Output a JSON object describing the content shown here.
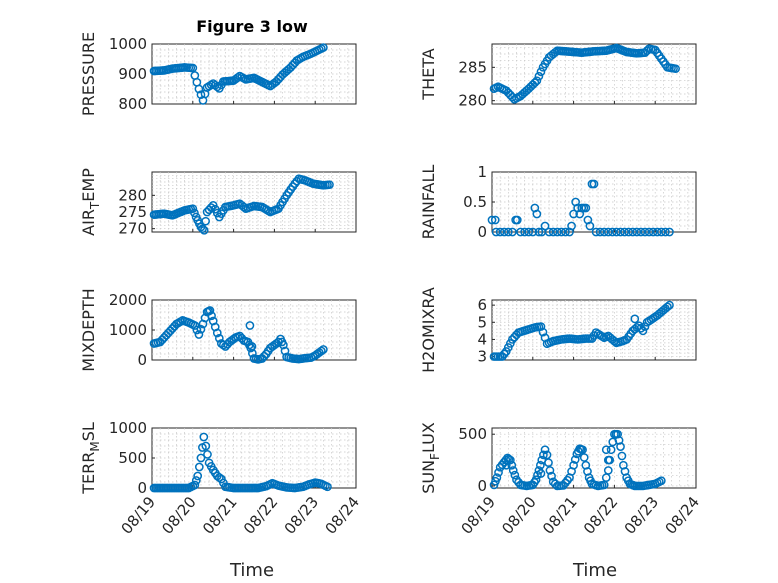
{
  "figure": {
    "title": "Figure 3 low",
    "xlabel": "Time",
    "marker_color": "#0072BD"
  },
  "chart_data": [
    {
      "type": "scatter",
      "id": "pressure",
      "title": "Figure 3 low",
      "ylabel": "PRESSURE",
      "xlim": [
        0,
        5
      ],
      "ylim": [
        800,
        1000
      ],
      "yticks": [
        800,
        900,
        1000
      ],
      "xticks": [
        0,
        1,
        2,
        3,
        4,
        5
      ],
      "xtick_labels": [
        "08/19",
        "08/20",
        "08/21",
        "08/22",
        "08/23",
        "08/24"
      ],
      "show_xtick_labels": false,
      "curve": [
        [
          0.05,
          910
        ],
        [
          0.3,
          912
        ],
        [
          0.5,
          918
        ],
        [
          0.8,
          922
        ],
        [
          1.0,
          920
        ],
        [
          1.05,
          895
        ],
        [
          1.15,
          850
        ],
        [
          1.25,
          812
        ],
        [
          1.35,
          855
        ],
        [
          1.5,
          868
        ],
        [
          1.65,
          852
        ],
        [
          1.75,
          875
        ],
        [
          2.0,
          878
        ],
        [
          2.15,
          893
        ],
        [
          2.3,
          882
        ],
        [
          2.5,
          887
        ],
        [
          2.75,
          870
        ],
        [
          2.9,
          860
        ],
        [
          3.05,
          875
        ],
        [
          3.2,
          898
        ],
        [
          3.4,
          922
        ],
        [
          3.55,
          945
        ],
        [
          3.7,
          957
        ],
        [
          3.9,
          968
        ],
        [
          4.05,
          978
        ],
        [
          4.2,
          988
        ]
      ]
    },
    {
      "type": "scatter",
      "id": "theta",
      "ylabel": "THETA",
      "xlim": [
        0,
        5
      ],
      "ylim": [
        279.5,
        288.5
      ],
      "yticks": [
        280,
        285
      ],
      "xticks": [
        0,
        1,
        2,
        3,
        4,
        5
      ],
      "xtick_labels": [
        "08/19",
        "08/20",
        "08/21",
        "08/22",
        "08/23",
        "08/24"
      ],
      "show_xtick_labels": false,
      "curve": [
        [
          0.05,
          281.8
        ],
        [
          0.15,
          282.1
        ],
        [
          0.35,
          281.5
        ],
        [
          0.55,
          280.2
        ],
        [
          0.7,
          280.7
        ],
        [
          0.9,
          281.8
        ],
        [
          1.1,
          283.0
        ],
        [
          1.25,
          285.0
        ],
        [
          1.4,
          286.5
        ],
        [
          1.6,
          287.5
        ],
        [
          2.0,
          287.3
        ],
        [
          2.2,
          287.2
        ],
        [
          2.5,
          287.4
        ],
        [
          2.8,
          287.5
        ],
        [
          3.05,
          287.9
        ],
        [
          3.3,
          287.3
        ],
        [
          3.55,
          287.1
        ],
        [
          3.75,
          287.2
        ],
        [
          3.85,
          287.8
        ],
        [
          4.0,
          287.6
        ],
        [
          4.15,
          286.3
        ],
        [
          4.3,
          285.0
        ],
        [
          4.5,
          284.8
        ]
      ]
    },
    {
      "type": "scatter",
      "id": "airtemp",
      "ylabel": "AIR",
      "ylabel_sub": "T",
      "ylabel_suffix": "EMP",
      "xlim": [
        0,
        5
      ],
      "ylim": [
        269,
        287
      ],
      "yticks": [
        270,
        275,
        280
      ],
      "xticks": [
        0,
        1,
        2,
        3,
        4,
        5
      ],
      "xtick_labels": [
        "08/19",
        "08/20",
        "08/21",
        "08/22",
        "08/23",
        "08/24"
      ],
      "show_xtick_labels": false,
      "curve": [
        [
          0.05,
          274.2
        ],
        [
          0.3,
          274.5
        ],
        [
          0.5,
          274.0
        ],
        [
          0.8,
          275.5
        ],
        [
          1.0,
          276.0
        ],
        [
          1.08,
          273.5
        ],
        [
          1.2,
          270.5
        ],
        [
          1.28,
          269.5
        ],
        [
          1.35,
          275.0
        ],
        [
          1.5,
          277.0
        ],
        [
          1.65,
          273.5
        ],
        [
          1.8,
          276.5
        ],
        [
          2.0,
          277.0
        ],
        [
          2.15,
          277.5
        ],
        [
          2.3,
          276.0
        ],
        [
          2.5,
          276.8
        ],
        [
          2.7,
          276.5
        ],
        [
          2.9,
          275.0
        ],
        [
          3.1,
          276.0
        ],
        [
          3.3,
          280.0
        ],
        [
          3.5,
          283.5
        ],
        [
          3.6,
          285.0
        ],
        [
          3.75,
          284.5
        ],
        [
          3.95,
          283.5
        ],
        [
          4.2,
          283.0
        ],
        [
          4.35,
          283.2
        ]
      ]
    },
    {
      "type": "scatter",
      "id": "rainfall",
      "ylabel": "RAINFALL",
      "xlim": [
        0,
        5
      ],
      "ylim": [
        0,
        1
      ],
      "yticks": [
        0,
        0.5,
        1
      ],
      "ytick_labels": [
        "0",
        "0.5",
        "1"
      ],
      "xticks": [
        0,
        1,
        2,
        3,
        4,
        5
      ],
      "xtick_labels": [
        "08/19",
        "08/20",
        "08/21",
        "08/22",
        "08/23",
        "08/24"
      ],
      "show_xtick_labels": false,
      "points": [
        [
          0.0,
          0.2
        ],
        [
          0.08,
          0.2
        ],
        [
          0.1,
          0
        ],
        [
          0.2,
          0
        ],
        [
          0.3,
          0
        ],
        [
          0.4,
          0
        ],
        [
          0.5,
          0
        ],
        [
          0.58,
          0.2
        ],
        [
          0.62,
          0.2
        ],
        [
          0.7,
          0
        ],
        [
          0.8,
          0
        ],
        [
          0.9,
          0
        ],
        [
          1.0,
          0
        ],
        [
          1.05,
          0.4
        ],
        [
          1.1,
          0.3
        ],
        [
          1.15,
          0
        ],
        [
          1.22,
          0
        ],
        [
          1.3,
          0.1
        ],
        [
          1.4,
          0
        ],
        [
          1.5,
          0
        ],
        [
          1.6,
          0
        ],
        [
          1.7,
          0
        ],
        [
          1.8,
          0
        ],
        [
          1.9,
          0
        ],
        [
          1.95,
          0.1
        ],
        [
          2.0,
          0.3
        ],
        [
          2.05,
          0.5
        ],
        [
          2.1,
          0.4
        ],
        [
          2.15,
          0.3
        ],
        [
          2.2,
          0.4
        ],
        [
          2.25,
          0.4
        ],
        [
          2.3,
          0.4
        ],
        [
          2.35,
          0.2
        ],
        [
          2.4,
          0.1
        ],
        [
          2.45,
          0.8
        ],
        [
          2.5,
          0.8
        ],
        [
          2.55,
          0
        ],
        [
          2.65,
          0
        ],
        [
          2.75,
          0
        ],
        [
          2.85,
          0
        ],
        [
          2.95,
          0
        ],
        [
          3.05,
          0
        ],
        [
          3.15,
          0
        ],
        [
          3.25,
          0
        ],
        [
          3.35,
          0
        ],
        [
          3.45,
          0
        ],
        [
          3.55,
          0
        ],
        [
          3.65,
          0
        ],
        [
          3.75,
          0
        ],
        [
          3.85,
          0
        ],
        [
          3.95,
          0
        ],
        [
          4.05,
          0
        ],
        [
          4.15,
          0
        ],
        [
          4.25,
          0
        ],
        [
          4.35,
          0
        ]
      ]
    },
    {
      "type": "scatter",
      "id": "mixdepth",
      "ylabel": "MIXDEPTH",
      "xlim": [
        0,
        5
      ],
      "ylim": [
        0,
        2000
      ],
      "yticks": [
        0,
        1000,
        2000
      ],
      "xticks": [
        0,
        1,
        2,
        3,
        4,
        5
      ],
      "xtick_labels": [
        "08/19",
        "08/20",
        "08/21",
        "08/22",
        "08/23",
        "08/24"
      ],
      "show_xtick_labels": false,
      "curve": [
        [
          0.05,
          550
        ],
        [
          0.2,
          600
        ],
        [
          0.4,
          900
        ],
        [
          0.6,
          1200
        ],
        [
          0.75,
          1320
        ],
        [
          0.9,
          1250
        ],
        [
          1.05,
          1150
        ],
        [
          1.15,
          850
        ],
        [
          1.25,
          1200
        ],
        [
          1.35,
          1600
        ],
        [
          1.42,
          1650
        ],
        [
          1.5,
          1300
        ],
        [
          1.6,
          900
        ],
        [
          1.7,
          550
        ],
        [
          1.8,
          450
        ],
        [
          1.9,
          600
        ],
        [
          2.05,
          750
        ],
        [
          2.15,
          800
        ],
        [
          2.25,
          650
        ],
        [
          2.35,
          600
        ],
        [
          2.42,
          400
        ],
        [
          2.5,
          50
        ],
        [
          2.6,
          20
        ],
        [
          2.7,
          50
        ],
        [
          2.8,
          200
        ],
        [
          2.9,
          400
        ],
        [
          3.0,
          500
        ],
        [
          3.1,
          600
        ],
        [
          3.15,
          700
        ],
        [
          3.22,
          500
        ],
        [
          3.3,
          100
        ],
        [
          3.45,
          50
        ],
        [
          3.6,
          30
        ],
        [
          3.75,
          60
        ],
        [
          3.9,
          80
        ],
        [
          4.0,
          150
        ],
        [
          4.1,
          250
        ],
        [
          4.2,
          350
        ]
      ],
      "extra_points": [
        [
          2.4,
          1150
        ],
        [
          2.45,
          450
        ]
      ]
    },
    {
      "type": "scatter",
      "id": "h2omixra",
      "ylabel": "H2OMIXRA",
      "xlim": [
        0,
        5
      ],
      "ylim": [
        2.8,
        6.3
      ],
      "yticks": [
        3,
        4,
        5,
        6
      ],
      "xticks": [
        0,
        1,
        2,
        3,
        4,
        5
      ],
      "xtick_labels": [
        "08/19",
        "08/20",
        "08/21",
        "08/22",
        "08/23",
        "08/24"
      ],
      "show_xtick_labels": false,
      "curve": [
        [
          0.05,
          3.0
        ],
        [
          0.25,
          3.0
        ],
        [
          0.35,
          3.3
        ],
        [
          0.5,
          4.0
        ],
        [
          0.65,
          4.4
        ],
        [
          0.85,
          4.55
        ],
        [
          1.05,
          4.7
        ],
        [
          1.2,
          4.75
        ],
        [
          1.3,
          4.1
        ],
        [
          1.35,
          3.75
        ],
        [
          1.5,
          3.9
        ],
        [
          1.7,
          4.0
        ],
        [
          1.9,
          4.05
        ],
        [
          2.1,
          4.0
        ],
        [
          2.3,
          4.05
        ],
        [
          2.45,
          4.05
        ],
        [
          2.55,
          4.4
        ],
        [
          2.65,
          4.25
        ],
        [
          2.75,
          4.1
        ],
        [
          2.85,
          4.2
        ],
        [
          2.95,
          4.0
        ],
        [
          3.05,
          3.8
        ],
        [
          3.2,
          3.9
        ],
        [
          3.3,
          4.0
        ],
        [
          3.45,
          4.5
        ],
        [
          3.6,
          4.8
        ],
        [
          3.7,
          4.5
        ],
        [
          3.8,
          5.0
        ],
        [
          3.9,
          5.15
        ],
        [
          4.05,
          5.4
        ],
        [
          4.2,
          5.7
        ],
        [
          4.35,
          6.0
        ]
      ],
      "extra_points": [
        [
          3.5,
          5.2
        ]
      ]
    },
    {
      "type": "scatter",
      "id": "terrmsl",
      "ylabel": "TERR",
      "ylabel_sub": "M",
      "ylabel_suffix": "SL",
      "xlim": [
        0,
        5
      ],
      "ylim": [
        0,
        1000
      ],
      "yticks": [
        0,
        500,
        1000
      ],
      "xticks": [
        0,
        1,
        2,
        3,
        4,
        5
      ],
      "xtick_labels": [
        "08/19",
        "08/20",
        "08/21",
        "08/22",
        "08/23",
        "08/24"
      ],
      "show_xtick_labels": true,
      "curve": [
        [
          0.05,
          0
        ],
        [
          0.3,
          0
        ],
        [
          0.6,
          0
        ],
        [
          0.9,
          0
        ],
        [
          1.05,
          50
        ],
        [
          1.12,
          200
        ],
        [
          1.2,
          500
        ],
        [
          1.27,
          850
        ],
        [
          1.32,
          700
        ],
        [
          1.4,
          420
        ],
        [
          1.5,
          300
        ],
        [
          1.6,
          200
        ],
        [
          1.7,
          150
        ],
        [
          1.8,
          20
        ],
        [
          2.0,
          0
        ],
        [
          2.3,
          0
        ],
        [
          2.6,
          0
        ],
        [
          2.8,
          30
        ],
        [
          2.95,
          80
        ],
        [
          3.1,
          40
        ],
        [
          3.3,
          10
        ],
        [
          3.5,
          0
        ],
        [
          3.7,
          20
        ],
        [
          3.85,
          60
        ],
        [
          4.0,
          90
        ],
        [
          4.15,
          70
        ],
        [
          4.3,
          20
        ]
      ]
    },
    {
      "type": "scatter",
      "id": "sunflux",
      "ylabel": "SUN",
      "ylabel_sub": "F",
      "ylabel_suffix": "LUX",
      "xlim": [
        0,
        5
      ],
      "ylim": [
        -20,
        560
      ],
      "yticks": [
        0,
        500
      ],
      "xticks": [
        0,
        1,
        2,
        3,
        4,
        5
      ],
      "xtick_labels": [
        "08/19",
        "08/20",
        "08/21",
        "08/22",
        "08/23",
        "08/24"
      ],
      "show_xtick_labels": true,
      "curve": [
        [
          0.05,
          10
        ],
        [
          0.12,
          80
        ],
        [
          0.2,
          180
        ],
        [
          0.3,
          230
        ],
        [
          0.38,
          270
        ],
        [
          0.45,
          250
        ],
        [
          0.52,
          150
        ],
        [
          0.6,
          60
        ],
        [
          0.7,
          10
        ],
        [
          0.85,
          0
        ],
        [
          1.0,
          10
        ],
        [
          1.08,
          60
        ],
        [
          1.15,
          150
        ],
        [
          1.22,
          250
        ],
        [
          1.3,
          350
        ],
        [
          1.35,
          300
        ],
        [
          1.42,
          150
        ],
        [
          1.5,
          40
        ],
        [
          1.6,
          0
        ],
        [
          1.75,
          5
        ],
        [
          1.9,
          80
        ],
        [
          2.0,
          200
        ],
        [
          2.08,
          310
        ],
        [
          2.15,
          360
        ],
        [
          2.22,
          350
        ],
        [
          2.3,
          200
        ],
        [
          2.38,
          80
        ],
        [
          2.45,
          20
        ],
        [
          2.6,
          0
        ],
        [
          2.75,
          10
        ],
        [
          2.85,
          150
        ],
        [
          2.92,
          350
        ],
        [
          3.0,
          500
        ],
        [
          3.08,
          500
        ],
        [
          3.15,
          380
        ],
        [
          3.22,
          200
        ],
        [
          3.3,
          80
        ],
        [
          3.38,
          20
        ],
        [
          3.5,
          0
        ],
        [
          3.7,
          0
        ],
        [
          3.85,
          10
        ],
        [
          4.0,
          20
        ],
        [
          4.15,
          50
        ]
      ],
      "extra_points": [
        [
          2.8,
          350
        ],
        [
          2.85,
          250
        ],
        [
          0.35,
          200
        ],
        [
          1.2,
          120
        ]
      ]
    }
  ]
}
